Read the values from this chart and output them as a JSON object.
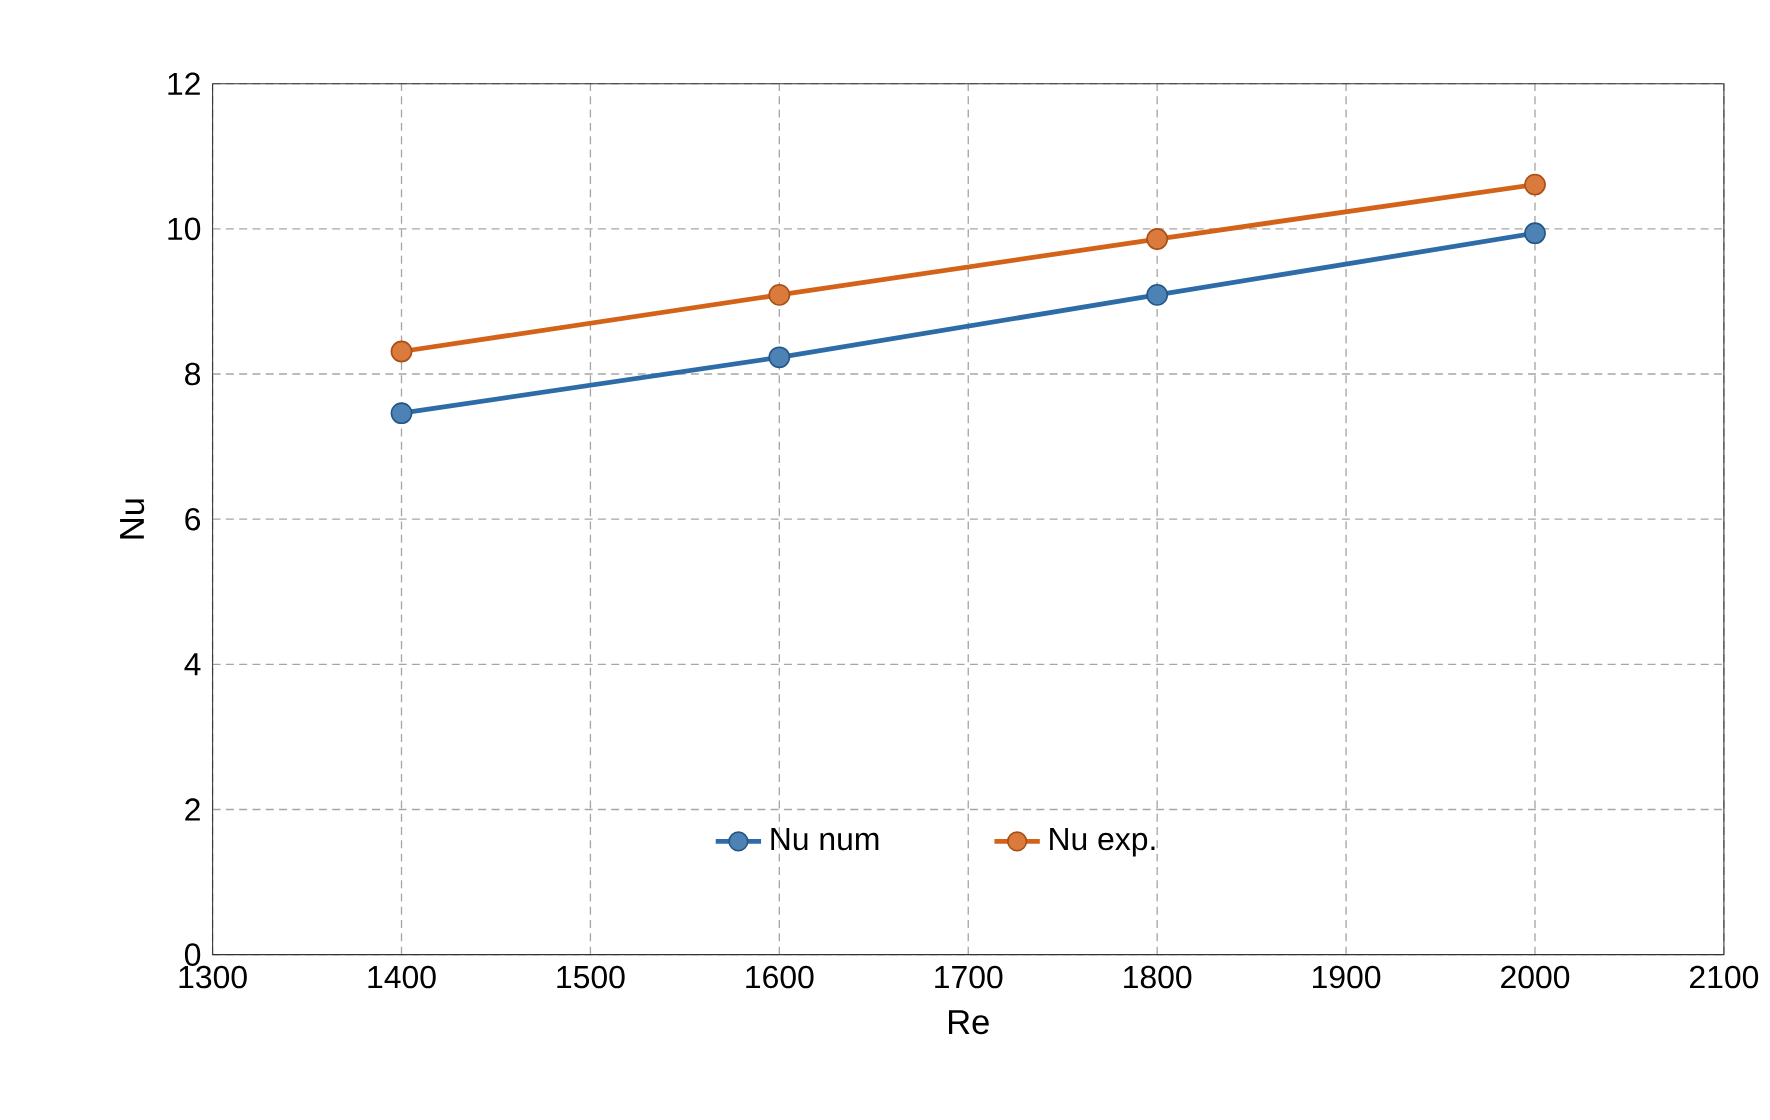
{
  "chart_data": {
    "type": "line",
    "xlabel": "Re",
    "ylabel": "Nu",
    "x": [
      1400,
      1600,
      1800,
      2000
    ],
    "series": [
      {
        "name": "Nu num",
        "color": "#2e6ca8",
        "values": [
          7.46,
          8.23,
          9.09,
          9.94
        ]
      },
      {
        "name": "Nu exp.",
        "color": "#d4631a",
        "values": [
          8.31,
          9.09,
          9.86,
          10.61
        ]
      }
    ],
    "xlim": [
      1300,
      2100
    ],
    "xticks": [
      1300,
      1400,
      1500,
      1600,
      1700,
      1800,
      1900,
      2000,
      2100
    ],
    "ylim": [
      0,
      12
    ],
    "yticks": [
      0,
      2,
      4,
      6,
      8,
      10,
      12
    ],
    "grid": true,
    "legend": "bottom",
    "marker": "circle",
    "line_style": "solid"
  }
}
